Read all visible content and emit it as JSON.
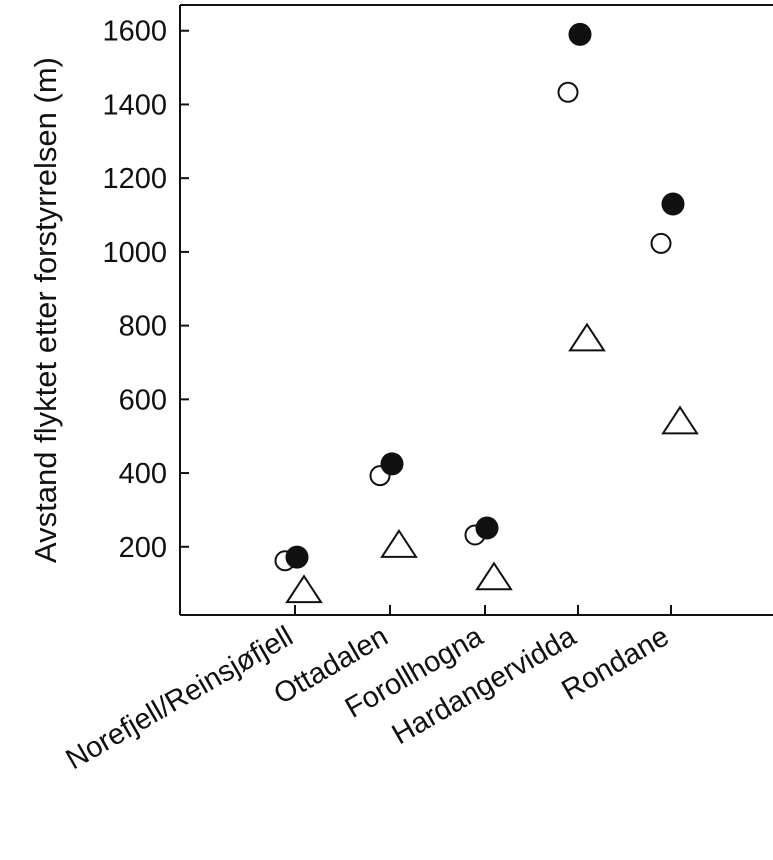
{
  "chart_data": {
    "type": "scatter",
    "title": "",
    "xlabel": "",
    "ylabel": "Avstand flyktet etter forstyrrelsen (m)",
    "categories": [
      "Norefjell/Reinsjøfjell",
      "Ottadalen",
      "Forollhogna",
      "Hardangervidda",
      "Rondane"
    ],
    "yticks": [
      200,
      400,
      600,
      800,
      1000,
      1200,
      1400,
      1600
    ],
    "ylim": [
      0,
      1650
    ],
    "grid": false,
    "series": [
      {
        "marker": "open-circle",
        "values": [
          162,
          393,
          232,
          1433,
          1023
        ]
      },
      {
        "marker": "filled-circle",
        "values": [
          172,
          425,
          251,
          1590,
          1130
        ]
      },
      {
        "marker": "open-triangle",
        "values": [
          85,
          208,
          120,
          768,
          543
        ]
      }
    ]
  }
}
